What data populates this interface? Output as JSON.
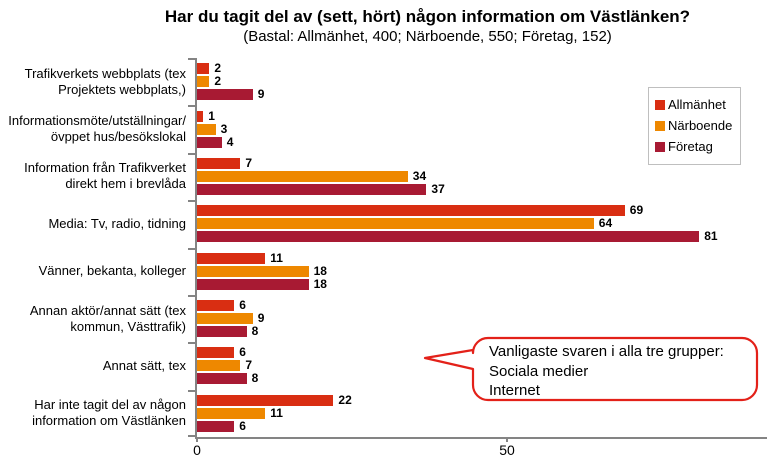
{
  "title": "Har du tagit del av (sett, hört) någon information om Västlänken?",
  "subtitle": "(Bastal: Allmänhet, 400; Närboende, 550; Företag, 152)",
  "chart_data": {
    "type": "bar",
    "orientation": "horizontal",
    "title": "Har du tagit del av (sett, hört) någon information om Västlänken?",
    "subtitle": "(Bastal: Allmänhet, 400; Närboende, 550; Företag, 152)",
    "categories": [
      "Trafikverkets webbplats (tex\nProjektets webbplats,)",
      "Informationsmöte/utställningar/\növppet hus/besökslokal",
      "Information från Trafikverket\ndirekt hem i brevlåda",
      "Media: Tv, radio, tidning",
      "Vänner, bekanta, kolleger",
      "Annan aktör/annat sätt (tex\nkommun, Västtrafik)",
      "Annat sätt, tex",
      "Har inte tagit del av någon\ninformation om Västlänken"
    ],
    "series": [
      {
        "name": "Allmänhet",
        "color": "#D92E12",
        "values": [
          2,
          1,
          7,
          69,
          11,
          6,
          6,
          22
        ]
      },
      {
        "name": "Närboende",
        "color": "#EE8800",
        "values": [
          2,
          3,
          34,
          64,
          18,
          9,
          7,
          11
        ]
      },
      {
        "name": "Företag",
        "color": "#A81A33",
        "values": [
          9,
          4,
          37,
          81,
          18,
          8,
          8,
          6
        ]
      }
    ],
    "xlim": [
      0,
      92
    ],
    "x_ticks": [
      0,
      50
    ],
    "grid": false,
    "legend_position": "right",
    "axis_color": "#848484",
    "value_labels": true
  },
  "callout": {
    "text": "Vanligaste svaren i alla tre grupper:\nSociala medier\nInternet",
    "border_color": "#E32119"
  }
}
